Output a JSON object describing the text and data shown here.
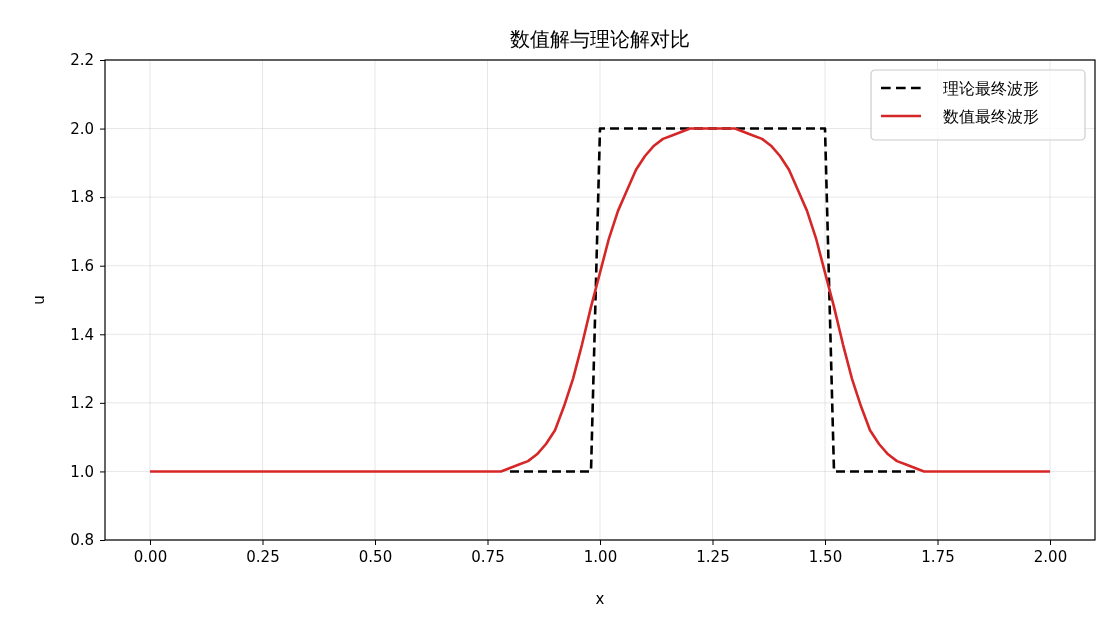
{
  "chart_data": {
    "type": "line",
    "title": "数值解与理论解对比",
    "xlabel": "x",
    "ylabel": "u",
    "xlim": [
      -0.1,
      2.1
    ],
    "ylim": [
      0.8,
      2.2
    ],
    "xticks": [
      {
        "value": 0,
        "label": "0.00"
      },
      {
        "value": 0.25,
        "label": "0.25"
      },
      {
        "value": 0.5,
        "label": "0.50"
      },
      {
        "value": 0.75,
        "label": "0.75"
      },
      {
        "value": 1,
        "label": "1.00"
      },
      {
        "value": 1.25,
        "label": "1.25"
      },
      {
        "value": 1.5,
        "label": "1.50"
      },
      {
        "value": 1.75,
        "label": "1.75"
      },
      {
        "value": 2,
        "label": "2.00"
      }
    ],
    "yticks": [
      {
        "value": 0.8,
        "label": "0.8"
      },
      {
        "value": 1,
        "label": "1.0"
      },
      {
        "value": 1.2,
        "label": "1.2"
      },
      {
        "value": 1.4,
        "label": "1.4"
      },
      {
        "value": 1.6,
        "label": "1.6"
      },
      {
        "value": 1.8,
        "label": "1.8"
      },
      {
        "value": 2,
        "label": "2.0"
      },
      {
        "value": 2.2,
        "label": "2.2"
      }
    ],
    "grid": true,
    "legend": "top right",
    "series": [
      {
        "name": "理论最终波形",
        "color": "#000000",
        "line_style": "dashed",
        "x": [
          0.8,
          0.98,
          1.0,
          1.5,
          1.52,
          1.7
        ],
        "values": [
          1,
          1,
          2,
          2,
          1,
          1
        ]
      },
      {
        "name": "数值最终波形",
        "color": "#d62728",
        "line_style": "solid",
        "x": [
          0,
          0.7,
          0.72,
          0.74,
          0.76,
          0.78,
          0.8,
          0.82,
          0.84,
          0.86,
          0.88,
          0.9,
          0.92,
          0.94,
          0.96,
          0.98,
          1.0,
          1.02,
          1.04,
          1.06,
          1.08,
          1.1,
          1.12,
          1.14,
          1.16,
          1.18,
          1.2,
          1.22,
          1.24,
          1.26,
          1.28,
          1.3,
          1.32,
          1.34,
          1.36,
          1.38,
          1.4,
          1.42,
          1.44,
          1.46,
          1.48,
          1.5,
          1.52,
          1.54,
          1.56,
          1.58,
          1.6,
          1.62,
          1.64,
          1.66,
          1.68,
          1.7,
          1.72,
          1.74,
          1.76,
          1.78,
          1.8,
          2.0
        ],
        "values": [
          1,
          1,
          1,
          1,
          1,
          1,
          1.01,
          1.02,
          1.03,
          1.05,
          1.08,
          1.12,
          1.19,
          1.27,
          1.37,
          1.48,
          1.58,
          1.68,
          1.76,
          1.82,
          1.88,
          1.92,
          1.95,
          1.97,
          1.98,
          1.99,
          2,
          2,
          2,
          2,
          2,
          2,
          1.99,
          1.98,
          1.97,
          1.95,
          1.92,
          1.88,
          1.82,
          1.76,
          1.68,
          1.58,
          1.48,
          1.37,
          1.27,
          1.19,
          1.12,
          1.08,
          1.05,
          1.03,
          1.02,
          1.01,
          1,
          1,
          1,
          1,
          1,
          1
        ]
      }
    ]
  }
}
